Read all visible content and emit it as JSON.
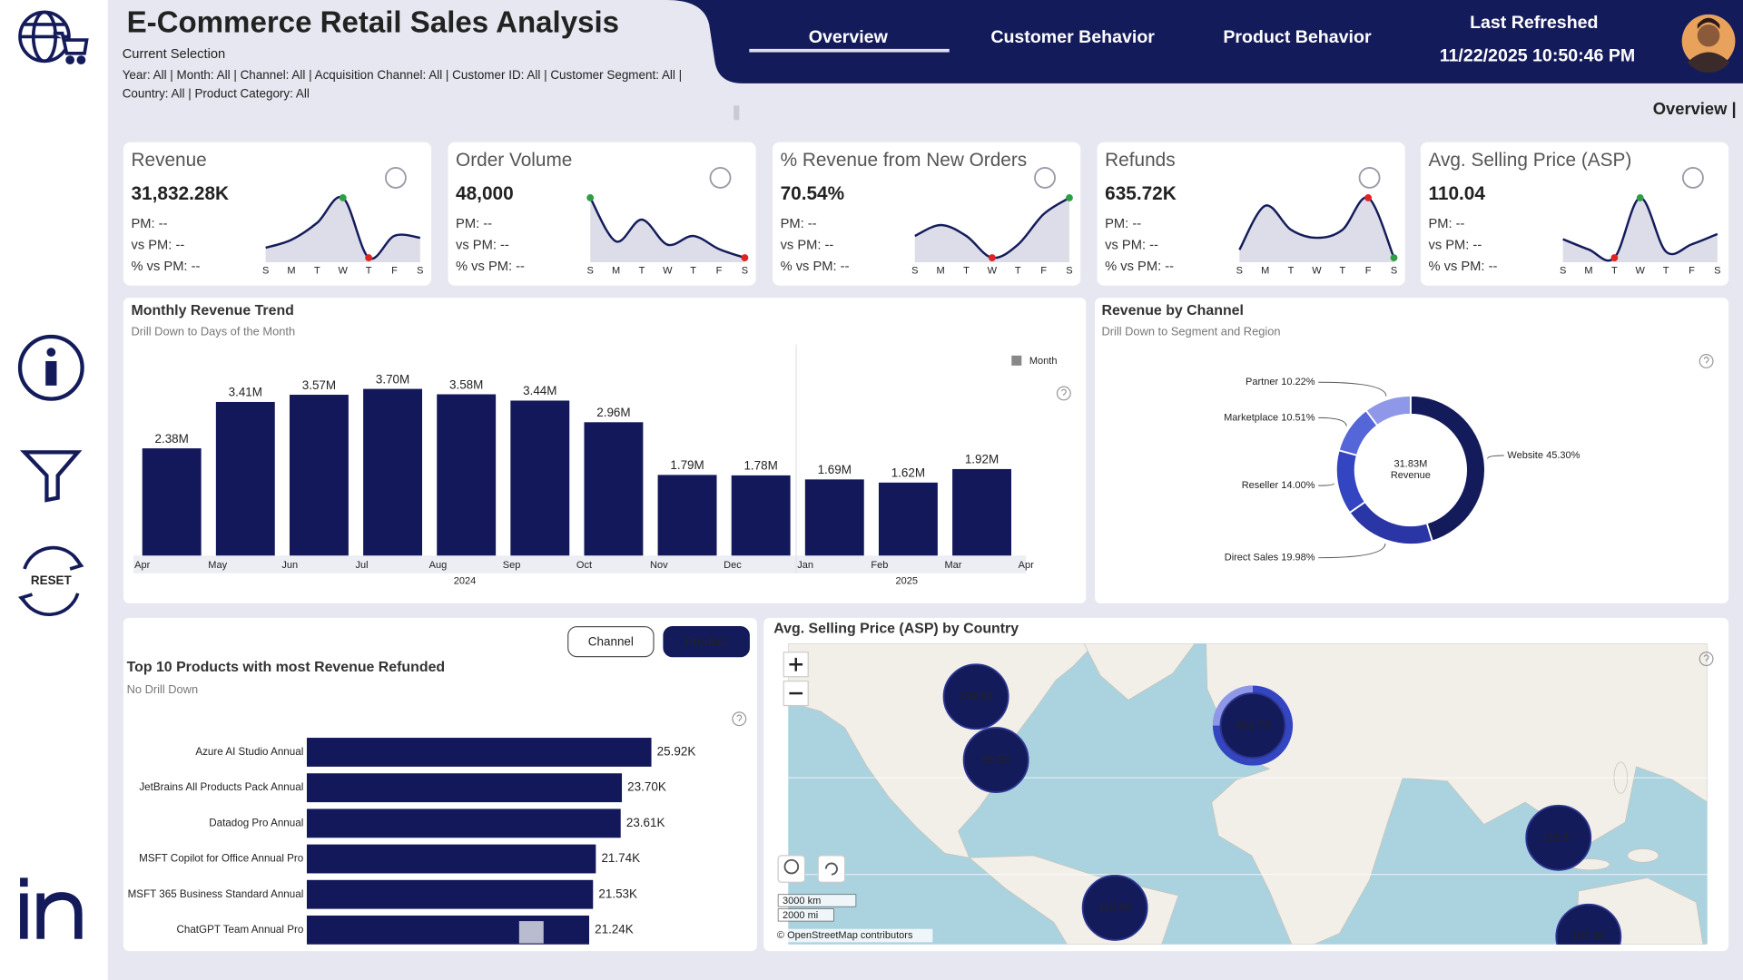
{
  "header": {
    "title": "E-Commerce Retail Sales Analysis",
    "selection_label": "Current Selection",
    "filters": [
      "Year: All | Month: All | Channel: All | Acquisition Channel: All | Customer ID: All | Customer Segment: All |",
      "Country: All | Product Category: All"
    ],
    "nav": [
      "Overview",
      "Customer Behavior",
      "Product Behavior"
    ],
    "refresh_label": "Last Refreshed",
    "refresh_time": "11/22/2025 10:50:46 PM",
    "page_label": "Overview |"
  },
  "sidebar": {
    "reset_label": "RESET"
  },
  "kpis": [
    {
      "title": "Revenue",
      "value": "31,832.28K",
      "details": [
        "PM: --",
        "vs PM: --",
        "% vs PM: --"
      ],
      "days": [
        "S",
        "M",
        "T",
        "W",
        "T",
        "F",
        "S"
      ],
      "trend": [
        30,
        38,
        55,
        80,
        20,
        42,
        40
      ],
      "high_color": "#2e9e44",
      "low_color": "#e02424"
    },
    {
      "title": "Order Volume",
      "value": "48,000",
      "details": [
        "PM: --",
        "vs PM: --",
        "% vs PM: --"
      ],
      "days": [
        "S",
        "M",
        "T",
        "W",
        "T",
        "F",
        "S"
      ],
      "trend": [
        85,
        45,
        65,
        42,
        50,
        38,
        30
      ],
      "high_color": "#2e9e44",
      "low_color": "#e02424"
    },
    {
      "title": "% Revenue from New Orders",
      "value": "70.54%",
      "details": [
        "PM: --",
        "vs PM: --",
        "% vs PM: --"
      ],
      "days": [
        "S",
        "M",
        "T",
        "W",
        "T",
        "F",
        "S"
      ],
      "trend": [
        40,
        50,
        40,
        20,
        32,
        60,
        75
      ],
      "high_color": "#2e9e44",
      "low_color": "#e02424"
    },
    {
      "title": "Refunds",
      "value": "635.72K",
      "details": [
        "PM: --",
        "vs PM: --",
        "% vs PM: --"
      ],
      "days": [
        "S",
        "M",
        "T",
        "W",
        "T",
        "F",
        "S"
      ],
      "trend": [
        20,
        75,
        45,
        35,
        45,
        85,
        10
      ],
      "high_color": "#e02424",
      "low_color": "#2e9e44"
    },
    {
      "title": "Avg. Selling Price (ASP)",
      "value": "110.04",
      "details": [
        "PM: --",
        "vs PM: --",
        "% vs PM: --"
      ],
      "days": [
        "S",
        "M",
        "T",
        "W",
        "T",
        "F",
        "S"
      ],
      "trend": [
        50,
        40,
        32,
        90,
        38,
        45,
        55
      ],
      "high_color": "#2e9e44",
      "low_color": "#e02424"
    }
  ],
  "chart_data": [
    {
      "type": "bar",
      "title": "Monthly Revenue Trend",
      "subtitle": "Drill Down to Days of the Month",
      "control": "Month",
      "categories": [
        "Apr",
        "May",
        "Jun",
        "Jul",
        "Aug",
        "Sep",
        "Oct",
        "Nov",
        "Dec",
        "Jan",
        "Feb",
        "Mar"
      ],
      "values": [
        2.38,
        3.41,
        3.57,
        3.7,
        3.58,
        3.44,
        2.96,
        1.79,
        1.78,
        1.69,
        1.62,
        1.92
      ],
      "value_labels": [
        "2.38M",
        "3.41M",
        "3.57M",
        "3.70M",
        "3.58M",
        "3.44M",
        "2.96M",
        "1.79M",
        "1.78M",
        "1.69M",
        "1.62M",
        "1.92M"
      ],
      "axis_end_label": "Apr",
      "year_groups": [
        {
          "label": "2024",
          "span": 9
        },
        {
          "label": "2025",
          "span": 3
        }
      ],
      "color": "#13185a"
    },
    {
      "type": "donut",
      "title": "Revenue by Channel",
      "subtitle": "Drill Down to Segment and Region",
      "categories": [
        "Website",
        "Direct Sales",
        "Reseller",
        "Marketplace",
        "Partner"
      ],
      "values": [
        45.3,
        19.98,
        14.0,
        10.51,
        10.22
      ],
      "value_labels": [
        "45.30%",
        "19.98%",
        "14.00%",
        "10.51%",
        "10.22%"
      ],
      "colors": [
        "#141b5a",
        "#2a35a6",
        "#3445c2",
        "#5566d8",
        "#8f98e8"
      ],
      "center_label": "31.83M",
      "center_sublabel": "Revenue"
    },
    {
      "type": "hbar",
      "title": "Top 10 Products with most Revenue Refunded",
      "subtitle": "No Drill Down",
      "toggles": [
        "Channel",
        "Product"
      ],
      "active_toggle": 1,
      "categories": [
        "Azure AI Studio Annual",
        "JetBrains All Products Pack Annual",
        "Datadog Pro Annual",
        "MSFT Copilot for Office Annual Pro",
        "MSFT 365 Business Standard Annual",
        "ChatGPT Team Annual Pro"
      ],
      "values": [
        25.92,
        23.7,
        23.61,
        21.74,
        21.53,
        21.24
      ],
      "value_labels": [
        "25.92K",
        "23.70K",
        "23.61K",
        "21.74K",
        "21.53K",
        "21.24K"
      ],
      "color": "#13185a"
    },
    {
      "type": "map",
      "title": "Avg. Selling Price (ASP) by Country",
      "values": [
        109.92,
        96.35,
        602.73,
        111.87,
        118.59,
        107.91
      ],
      "color": "#141b5a",
      "scale_labels": [
        "3000 km",
        "2000 mi"
      ],
      "attribution": "© OpenStreetMap contributors"
    }
  ]
}
